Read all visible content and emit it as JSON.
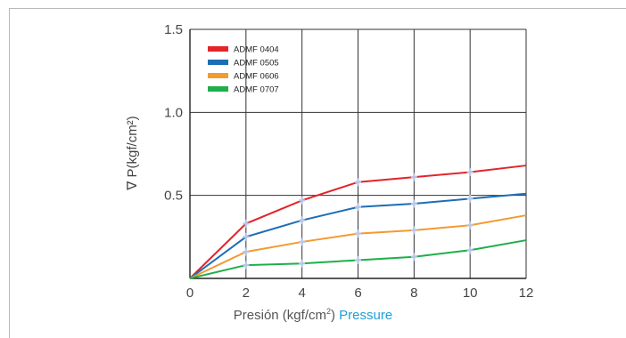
{
  "chart_data": {
    "type": "line",
    "x": [
      0,
      2,
      4,
      6,
      8,
      10,
      12
    ],
    "xlim": [
      0,
      12
    ],
    "ylim": [
      0,
      1.5
    ],
    "x_ticks": [
      "0",
      "2",
      "4",
      "6",
      "8",
      "10",
      "12"
    ],
    "y_ticks": [
      "1.5",
      "1.0",
      "0.5"
    ],
    "y_tick_values": [
      1.5,
      1.0,
      0.5
    ],
    "ylabel": "∇ P(kgf/cm²)",
    "xlabel_main": "Presión (kgf/cm",
    "xlabel_sup": "2",
    "xlabel_close": ")",
    "xlabel_en": "Pressure",
    "grid": true,
    "legend_position": "top-left",
    "marker_color": "#b9c6e8",
    "series": [
      {
        "name": "ADMF 0404",
        "color": "#e3242b",
        "values": [
          0,
          0.33,
          0.47,
          0.58,
          0.61,
          0.64,
          0.68
        ]
      },
      {
        "name": "ADMF 0505",
        "color": "#1c6db5",
        "values": [
          0,
          0.25,
          0.35,
          0.43,
          0.45,
          0.48,
          0.51
        ]
      },
      {
        "name": "ADMF 0606",
        "color": "#f39a31",
        "values": [
          0,
          0.16,
          0.22,
          0.27,
          0.29,
          0.32,
          0.38
        ]
      },
      {
        "name": "ADMF 0707",
        "color": "#1fae4a",
        "values": [
          0,
          0.08,
          0.09,
          0.11,
          0.13,
          0.17,
          0.23
        ]
      }
    ]
  }
}
